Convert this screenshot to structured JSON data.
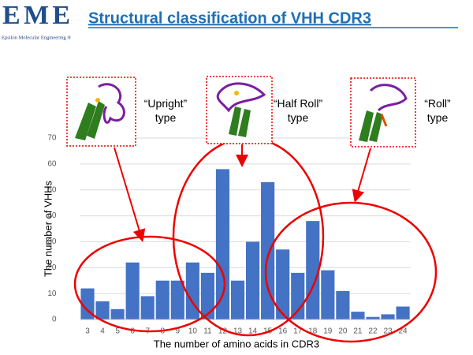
{
  "logo": {
    "mark": "EME",
    "caption": "Epsilon Molecular Engineering ®"
  },
  "chart_data": {
    "type": "bar",
    "title": "Structural classification of VHH CDR3",
    "x_label": "The number of amino acids in CDR3",
    "y_label": "The number of VHHs",
    "categories": [
      "3",
      "4",
      "5",
      "6",
      "7",
      "8",
      "9",
      "10",
      "11",
      "12",
      "13",
      "14",
      "15",
      "16",
      "17",
      "18",
      "19",
      "20",
      "21",
      "22",
      "23",
      "24"
    ],
    "values": [
      12,
      7,
      4,
      22,
      9,
      15,
      15,
      22,
      18,
      58,
      15,
      30,
      53,
      27,
      18,
      38,
      19,
      11,
      3,
      1,
      2,
      5
    ],
    "color": "#4472c4",
    "ylim": [
      0,
      70
    ],
    "yticks": [
      0,
      10,
      20,
      30,
      40,
      50,
      60,
      70
    ],
    "grid": true,
    "annotations": [
      [
        "“Upright”",
        "type"
      ],
      [
        "“Half Roll”",
        "type"
      ],
      [
        "“Roll”",
        "type"
      ]
    ]
  }
}
